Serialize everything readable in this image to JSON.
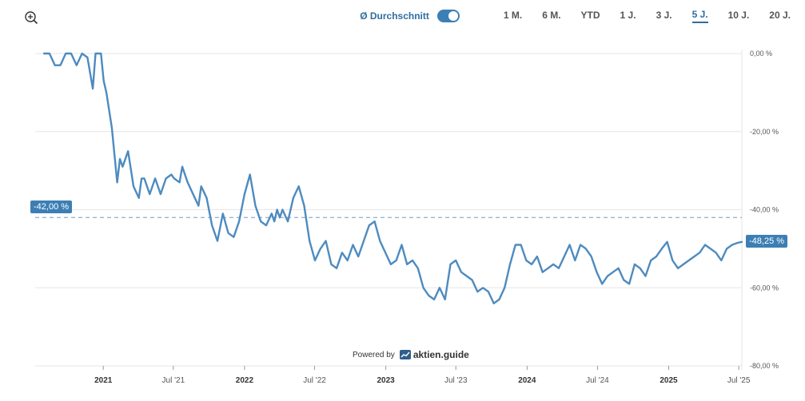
{
  "toolbar": {
    "average_label": "Ø Durchschnitt",
    "average_enabled": true,
    "ranges": [
      "1 M.",
      "6 M.",
      "YTD",
      "1 J.",
      "3 J.",
      "5 J.",
      "10 J.",
      "20 J."
    ],
    "active_range": "5 J."
  },
  "icons": {
    "zoom": "zoom-in-icon",
    "brand": "chart-trend-icon"
  },
  "colors": {
    "line": "#4e8bbf",
    "accent": "#3c7fb5",
    "average": "#6f9ccc"
  },
  "credit": {
    "prefix": "Powered by",
    "brand": "aktien.guide"
  },
  "chart_data": {
    "type": "line",
    "y_unit": "%",
    "ylim": [
      -80,
      0
    ],
    "y_ticks": [
      0,
      -20,
      -40,
      -60,
      -80
    ],
    "y_tick_labels": [
      "0,00 %",
      "-20,00 %",
      "-40,00 %",
      "-60,00 %",
      "-80,00 %"
    ],
    "xlim": [
      "2020-07-09",
      "2025-07-09"
    ],
    "x_ticks": [
      "2021-01-01",
      "2021-07-01",
      "2022-01-01",
      "2022-07-01",
      "2023-01-01",
      "2023-07-01",
      "2024-01-01",
      "2024-07-01",
      "2025-01-01",
      "2025-07-01"
    ],
    "x_tick_labels": [
      "2021",
      "Jul '21",
      "2022",
      "Jul '22",
      "2023",
      "Jul '23",
      "2024",
      "Jul '24",
      "2025",
      "Jul '25"
    ],
    "x_tick_year": [
      true,
      false,
      true,
      false,
      true,
      false,
      true,
      false,
      true,
      false
    ],
    "grid": true,
    "average": {
      "value": -42.0,
      "label": "-42,00 %"
    },
    "last": {
      "value": -48.25,
      "label": "-48,25 %"
    },
    "series": [
      {
        "x": [
          "2020-08-01",
          "2020-08-15",
          "2020-08-29",
          "2020-09-12",
          "2020-09-26",
          "2020-10-10",
          "2020-10-24",
          "2020-11-07",
          "2020-11-21",
          "2020-12-05",
          "2020-12-12",
          "2020-12-19",
          "2020-12-26",
          "2021-01-02",
          "2021-01-09",
          "2021-01-23",
          "2021-02-06",
          "2021-02-13",
          "2021-02-20",
          "2021-03-06",
          "2021-03-20",
          "2021-04-03",
          "2021-04-10",
          "2021-04-17",
          "2021-05-01",
          "2021-05-15",
          "2021-05-29",
          "2021-06-12",
          "2021-06-26",
          "2021-07-03",
          "2021-07-17",
          "2021-07-24",
          "2021-08-07",
          "2021-08-21",
          "2021-09-04",
          "2021-09-11",
          "2021-09-25",
          "2021-10-09",
          "2021-10-23",
          "2021-11-06",
          "2021-11-20",
          "2021-12-04",
          "2021-12-18",
          "2022-01-01",
          "2022-01-15",
          "2022-01-29",
          "2022-02-12",
          "2022-02-26",
          "2022-03-12",
          "2022-03-19",
          "2022-03-26",
          "2022-04-02",
          "2022-04-09",
          "2022-04-23",
          "2022-05-07",
          "2022-05-21",
          "2022-06-04",
          "2022-06-18",
          "2022-07-02",
          "2022-07-16",
          "2022-07-30",
          "2022-08-13",
          "2022-08-27",
          "2022-09-10",
          "2022-09-24",
          "2022-10-08",
          "2022-10-22",
          "2022-11-05",
          "2022-11-12",
          "2022-11-19",
          "2022-12-03",
          "2022-12-17",
          "2022-12-31",
          "2023-01-14",
          "2023-01-28",
          "2023-02-11",
          "2023-02-25",
          "2023-03-11",
          "2023-03-25",
          "2023-04-08",
          "2023-04-22",
          "2023-05-06",
          "2023-05-20",
          "2023-06-03",
          "2023-06-17",
          "2023-07-01",
          "2023-07-15",
          "2023-07-29",
          "2023-08-12",
          "2023-08-26",
          "2023-09-09",
          "2023-09-23",
          "2023-10-07",
          "2023-10-21",
          "2023-11-04",
          "2023-11-18",
          "2023-12-02",
          "2023-12-16",
          "2023-12-30",
          "2024-01-13",
          "2024-01-27",
          "2024-02-10",
          "2024-02-24",
          "2024-03-09",
          "2024-03-23",
          "2024-04-06",
          "2024-04-20",
          "2024-05-04",
          "2024-05-18",
          "2024-06-01",
          "2024-06-15",
          "2024-06-29",
          "2024-07-13",
          "2024-07-27",
          "2024-08-10",
          "2024-08-24",
          "2024-09-07",
          "2024-09-21",
          "2024-10-05",
          "2024-10-19",
          "2024-11-02",
          "2024-11-16",
          "2024-11-30",
          "2024-12-14",
          "2024-12-28",
          "2025-01-11",
          "2025-01-25",
          "2025-02-08",
          "2025-02-22",
          "2025-03-08",
          "2025-03-22",
          "2025-04-05",
          "2025-04-19",
          "2025-05-03",
          "2025-05-17",
          "2025-05-31",
          "2025-06-14",
          "2025-06-28",
          "2025-07-09"
        ],
        "y": [
          0,
          0,
          -3,
          -3,
          0,
          0,
          -3,
          0,
          -1,
          -9,
          0,
          0,
          0,
          -7,
          -10,
          -19,
          -33,
          -27,
          -29,
          -25,
          -34,
          -37,
          -32,
          -32,
          -36,
          -32,
          -36,
          -32,
          -31,
          -32,
          -33,
          -29,
          -33,
          -36,
          -39,
          -34,
          -37,
          -44,
          -48,
          -41,
          -46,
          -47,
          -43,
          -36,
          -31,
          -39,
          -43,
          -44,
          -41,
          -43,
          -40,
          -42,
          -40,
          -43,
          -37,
          -34,
          -39,
          -48,
          -53,
          -50,
          -48,
          -54,
          -55,
          -51,
          -53,
          -49,
          -52,
          -48,
          -46,
          -44,
          -43,
          -48,
          -51,
          -54,
          -53,
          -49,
          -54,
          -53,
          -55,
          -60,
          -62,
          -63,
          -60,
          -63,
          -54,
          -53,
          -56,
          -57,
          -58,
          -61,
          -60,
          -61,
          -64,
          -63,
          -60,
          -54,
          -49,
          -49,
          -53,
          -54,
          -52,
          -56,
          -55,
          -54,
          -55,
          -52,
          -49,
          -53,
          -49,
          -50,
          -52,
          -56,
          -59,
          -57,
          -56,
          -55,
          -58,
          -59,
          -54,
          -55,
          -57,
          -53,
          -52,
          -50,
          -48.25,
          -53,
          -55,
          -54,
          -53,
          -52,
          -51,
          -49,
          -50,
          -51,
          -53,
          -50,
          -49,
          -48.5,
          -48.25
        ]
      }
    ]
  }
}
